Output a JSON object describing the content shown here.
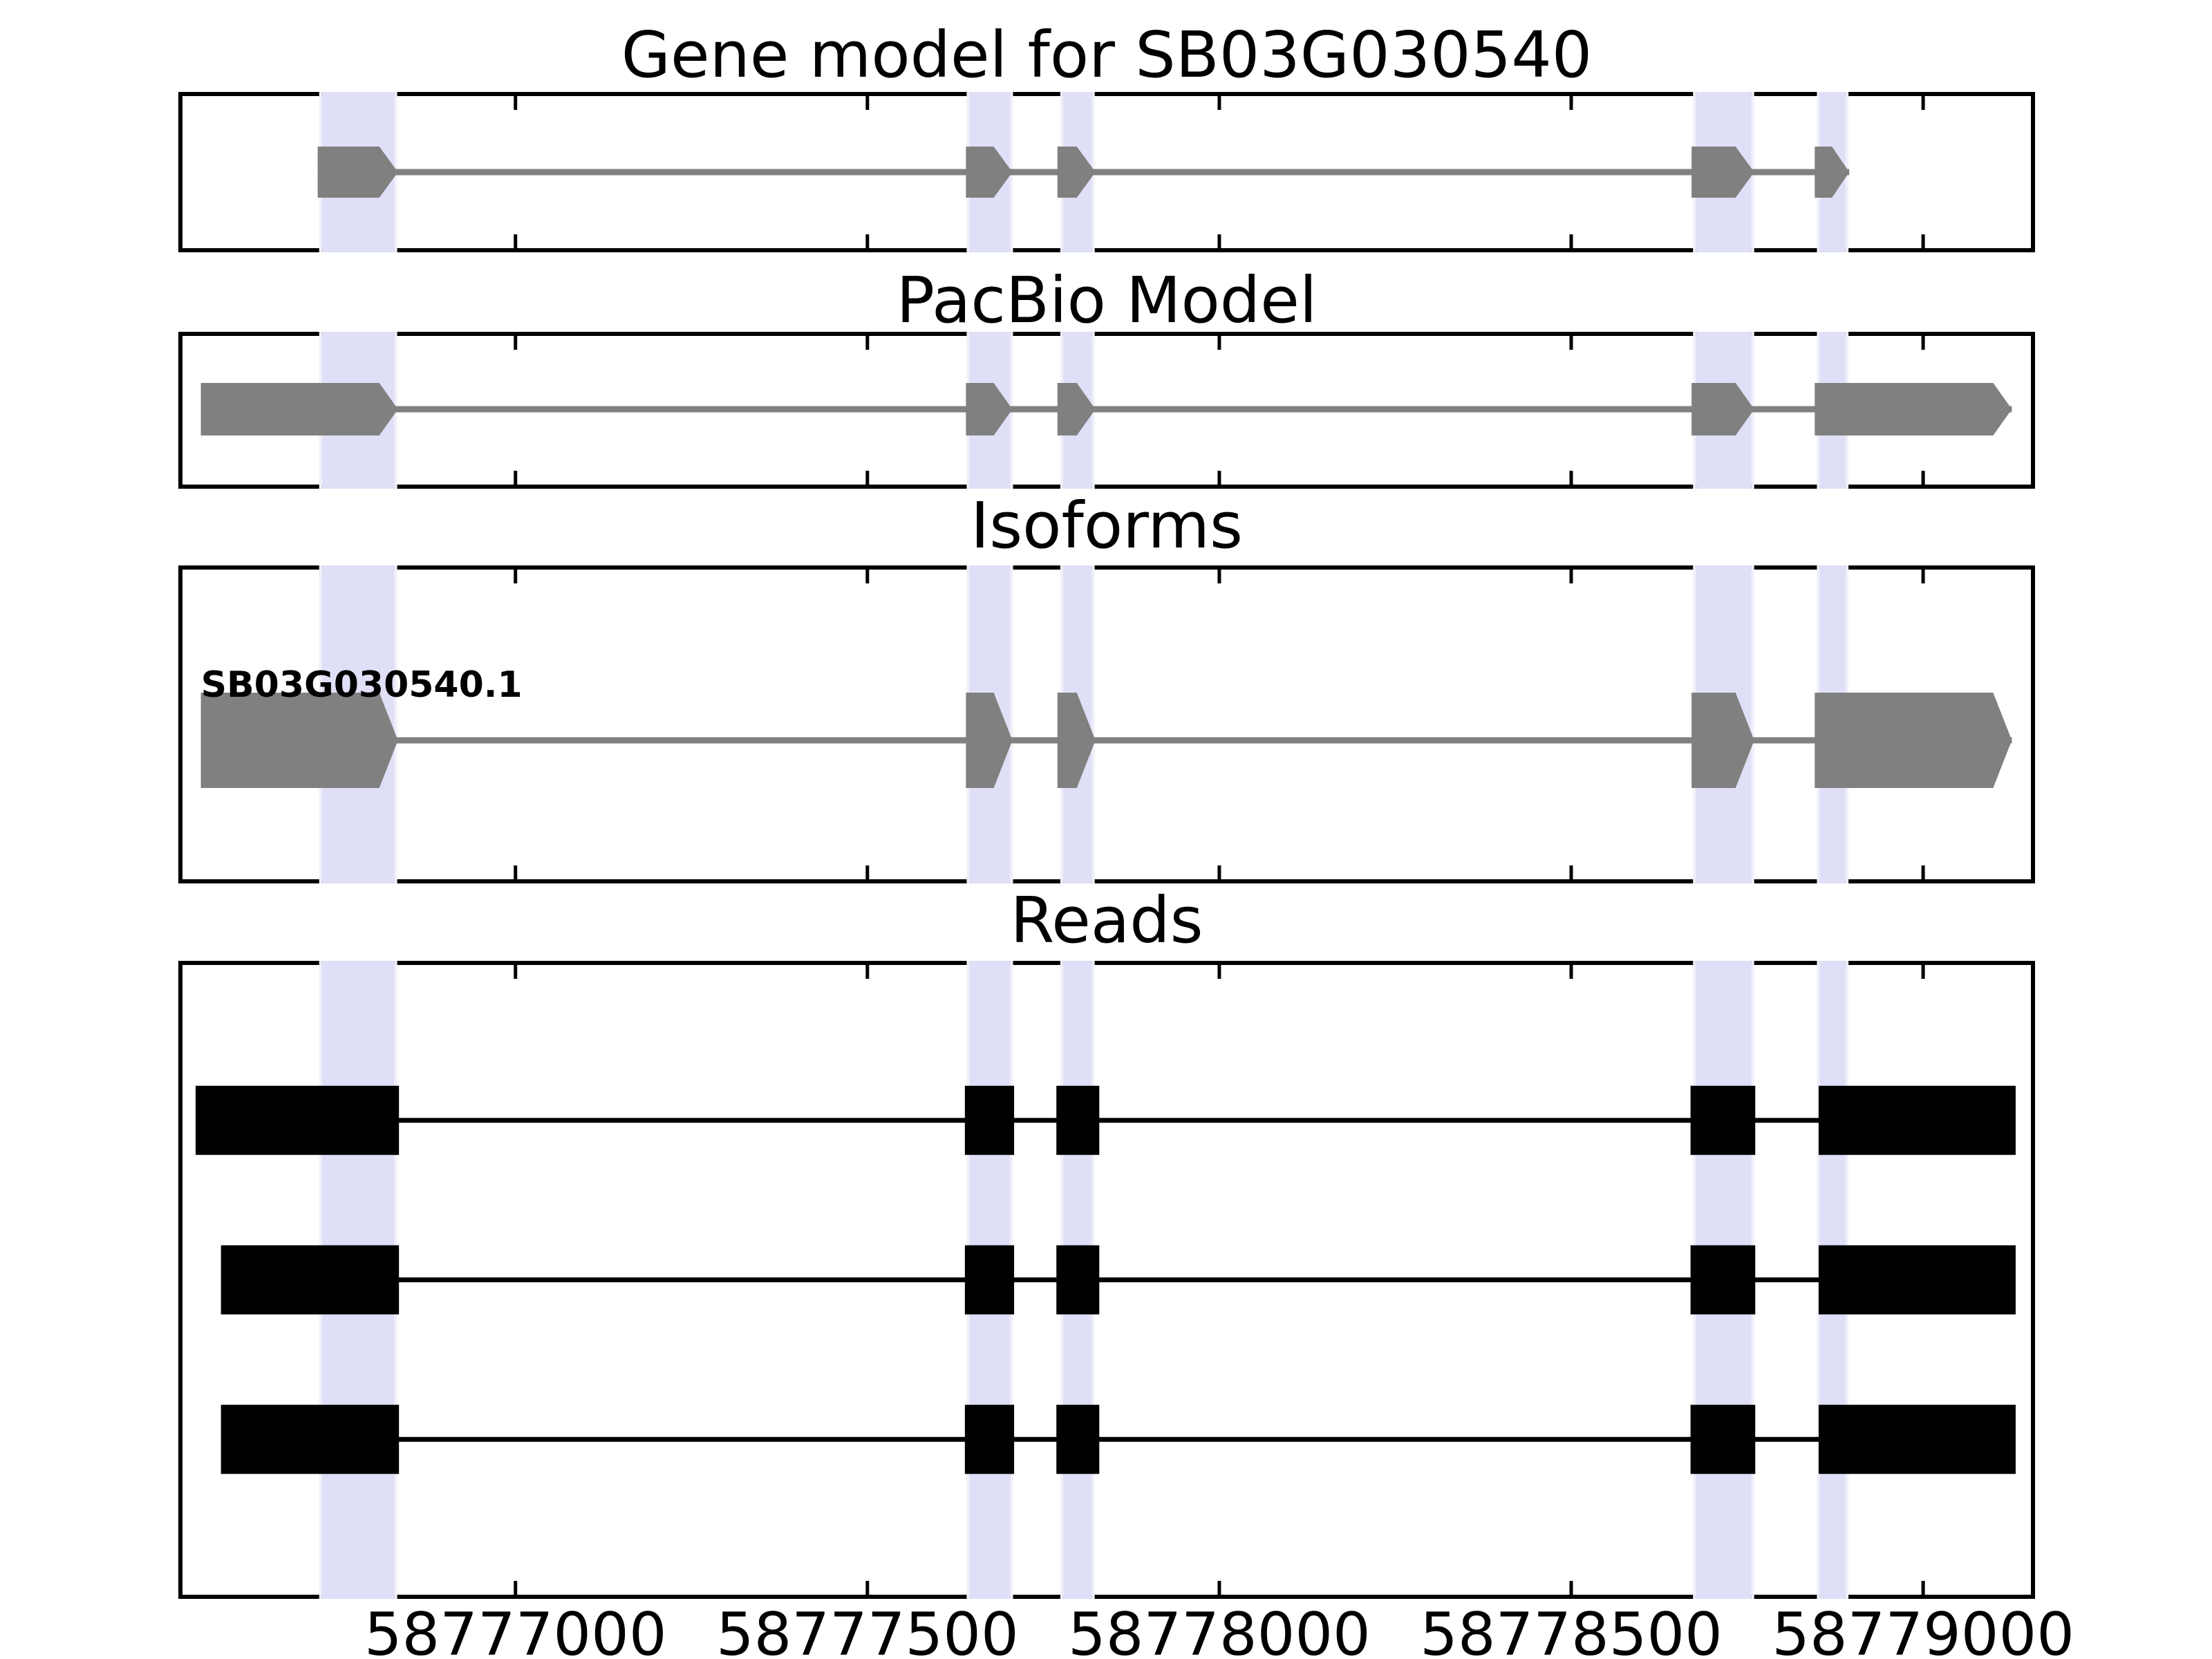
{
  "figure": {
    "background": "#ffffff"
  },
  "chart_data": {
    "type": "gene-track-plot",
    "genome_axis": {
      "min": 58776521,
      "max": 58779159,
      "ticks": [
        {
          "value": 58777000,
          "label": "58777000"
        },
        {
          "value": 58777500,
          "label": "58777500"
        },
        {
          "value": 58778000,
          "label": "58778000"
        },
        {
          "value": 58778500,
          "label": "58778500"
        },
        {
          "value": 58779000,
          "label": "58779000"
        }
      ]
    },
    "highlight_regions": [
      {
        "start": 58776725,
        "end": 58776828
      },
      {
        "start": 58777645,
        "end": 58777703
      },
      {
        "start": 58777778,
        "end": 58777819
      },
      {
        "start": 58778677,
        "end": 58778756
      },
      {
        "start": 58778853,
        "end": 58778890
      }
    ],
    "panels": {
      "gene_model": {
        "title": "Gene model for SB03G030540",
        "strand": "+",
        "exons": [
          [
            58776719,
            58776833
          ],
          [
            58777640,
            58777706
          ],
          [
            58777770,
            58777824
          ],
          [
            58778671,
            58778760
          ],
          [
            58778846,
            58778895
          ]
        ]
      },
      "pacbio": {
        "title": "PacBio Model",
        "strand": "+",
        "exons": [
          [
            58776553,
            58776833
          ],
          [
            58777640,
            58777706
          ],
          [
            58777770,
            58777824
          ],
          [
            58778671,
            58778760
          ],
          [
            58778846,
            58779126
          ]
        ]
      },
      "isoforms": {
        "title": "Isoforms",
        "isoforms": [
          {
            "label": "SB03G030540.1",
            "strand": "+",
            "exons": [
              [
                58776553,
                58776833
              ],
              [
                58777640,
                58777706
              ],
              [
                58777770,
                58777824
              ],
              [
                58778671,
                58778760
              ],
              [
                58778846,
                58779126
              ]
            ]
          }
        ]
      },
      "reads": {
        "title": "Reads",
        "reads": [
          {
            "blocks": [
              [
                58776547,
                58776833
              ],
              [
                58777640,
                58777707
              ],
              [
                58777770,
                58777828
              ],
              [
                58778671,
                58778760
              ],
              [
                58778853,
                58779130
              ]
            ]
          },
          {
            "blocks": [
              [
                58776583,
                58776833
              ],
              [
                58777640,
                58777707
              ],
              [
                58777770,
                58777828
              ],
              [
                58778671,
                58778760
              ],
              [
                58778853,
                58779130
              ]
            ]
          },
          {
            "blocks": [
              [
                58776583,
                58776833
              ],
              [
                58777640,
                58777707
              ],
              [
                58777770,
                58777828
              ],
              [
                58778671,
                58778760
              ],
              [
                58778853,
                58779130
              ]
            ]
          }
        ]
      }
    }
  },
  "colors": {
    "exon_gray": "#808080",
    "read_black": "#000000",
    "highlight_fill": "#dfdff7",
    "highlight_edge": "#f0f0fb",
    "axis_black": "#000000",
    "background": "#ffffff"
  }
}
